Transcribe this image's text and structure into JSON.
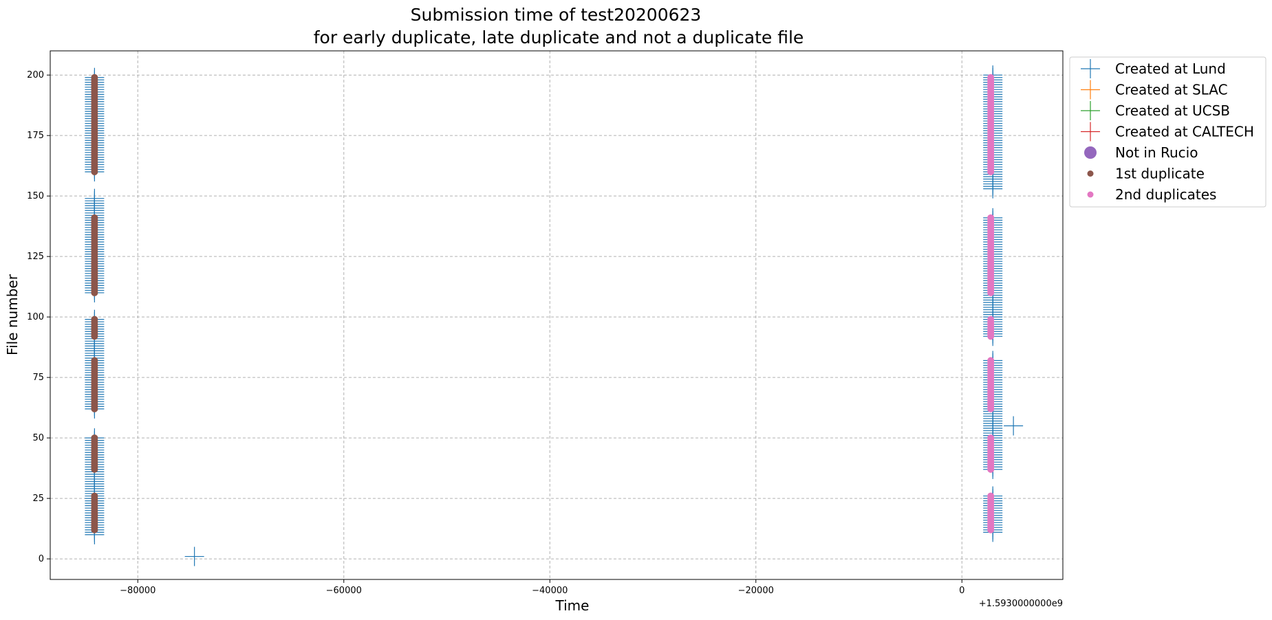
{
  "chart_data": {
    "type": "scatter",
    "title_line1": "Submission time of test20200623",
    "title_line2": "for early duplicate, late duplicate and not a duplicate file",
    "xlabel": "Time",
    "ylabel": "File number",
    "x_offset_label": "+1.5930000000e9",
    "xlim": [
      -88500,
      9800
    ],
    "ylim": [
      -8.5,
      210
    ],
    "xticks": [
      -80000,
      -60000,
      -40000,
      -20000,
      0
    ],
    "xtick_labels": [
      "−80000",
      "−60000",
      "−40000",
      "−20000",
      "0"
    ],
    "yticks": [
      0,
      25,
      50,
      75,
      100,
      125,
      150,
      175,
      200
    ],
    "grid": true,
    "legend_position": "outside-right-top",
    "colors": {
      "lund": "#1f77b4",
      "slac": "#ff7f0e",
      "ucsb": "#2ca02c",
      "caltech": "#d62728",
      "not_in_rucio": "#9467bd",
      "first_duplicate": "#8c564b",
      "second_duplicates": "#e377c2"
    },
    "legend": [
      {
        "label": "Created at Lund",
        "marker": "plus",
        "color": "#1f77b4"
      },
      {
        "label": "Created at SLAC",
        "marker": "plus",
        "color": "#ff7f0e"
      },
      {
        "label": "Created at UCSB",
        "marker": "plus",
        "color": "#2ca02c"
      },
      {
        "label": "Created at CALTECH",
        "marker": "plus",
        "color": "#d62728"
      },
      {
        "label": "Not in Rucio",
        "marker": "big-circle",
        "color": "#9467bd"
      },
      {
        "label": "1st duplicate",
        "marker": "circle",
        "color": "#8c564b"
      },
      {
        "label": "2nd duplicates",
        "marker": "circle",
        "color": "#e377c2"
      }
    ],
    "series": [
      {
        "name": "Created at Lund",
        "marker": "plus",
        "color": "#1f77b4",
        "clusters": [
          {
            "x": -84200,
            "y_from": 10,
            "y_to": 50
          },
          {
            "x": -84200,
            "y_from": 62,
            "y_to": 99
          },
          {
            "x": -84200,
            "y_from": 110,
            "y_to": 149
          },
          {
            "x": -84200,
            "y_from": 160,
            "y_to": 199
          },
          {
            "x": 3000,
            "y_from": 11,
            "y_to": 26
          },
          {
            "x": 3000,
            "y_from": 37,
            "y_to": 82
          },
          {
            "x": 3000,
            "y_from": 92,
            "y_to": 141
          },
          {
            "x": 3000,
            "y_from": 153,
            "y_to": 200
          }
        ],
        "points": [
          {
            "x": -74500,
            "y": 1
          },
          {
            "x": 5000,
            "y": 55
          }
        ]
      },
      {
        "name": "1st duplicate",
        "marker": "circle",
        "color": "#8c564b",
        "clusters": [
          {
            "x": -84200,
            "y_from": 12,
            "y_to": 26
          },
          {
            "x": -84200,
            "y_from": 37,
            "y_to": 50
          },
          {
            "x": -84200,
            "y_from": 62,
            "y_to": 82
          },
          {
            "x": -84200,
            "y_from": 92,
            "y_to": 99
          },
          {
            "x": -84200,
            "y_from": 110,
            "y_to": 141
          },
          {
            "x": -84200,
            "y_from": 160,
            "y_to": 199
          }
        ],
        "points": []
      },
      {
        "name": "2nd duplicates",
        "marker": "circle",
        "color": "#e377c2",
        "clusters": [
          {
            "x": 2800,
            "y_from": 12,
            "y_to": 26
          },
          {
            "x": 2800,
            "y_from": 37,
            "y_to": 50
          },
          {
            "x": 2800,
            "y_from": 62,
            "y_to": 82
          },
          {
            "x": 2800,
            "y_from": 92,
            "y_to": 99
          },
          {
            "x": 2800,
            "y_from": 110,
            "y_to": 141
          },
          {
            "x": 2800,
            "y_from": 160,
            "y_to": 199
          }
        ],
        "points": []
      }
    ]
  }
}
